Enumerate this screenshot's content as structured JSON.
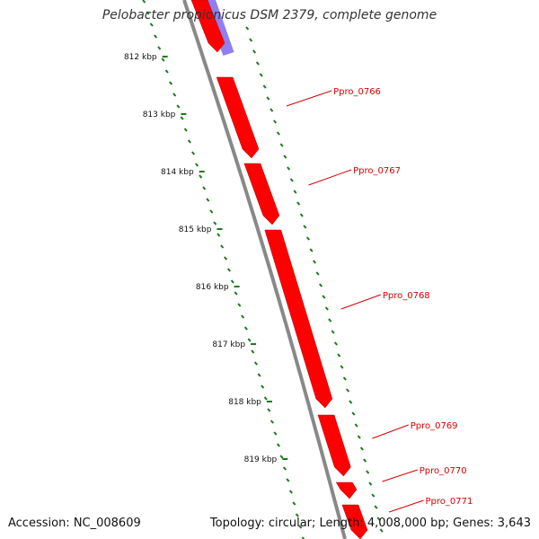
{
  "title": "Pelobacter propionicus DSM 2379, complete genome",
  "footer": {
    "accession": "Accession: NC_008609",
    "summary": "Topology: circular; Length: 4,008,000 bp; Genes: 3,643"
  },
  "colors": {
    "forward_gene": "#ff0000",
    "reverse_gene": "#7b68ee",
    "backbone": "#888888",
    "ticks": "#1a7a1a",
    "labels": "#d80000"
  },
  "scale_ticks": [
    {
      "label": "812 kbp"
    },
    {
      "label": "813 kbp"
    },
    {
      "label": "814 kbp"
    },
    {
      "label": "815 kbp"
    },
    {
      "label": "816 kbp"
    },
    {
      "label": "817 kbp"
    },
    {
      "label": "818 kbp"
    },
    {
      "label": "819 kbp"
    }
  ],
  "genes": [
    {
      "name": "Ppro_0766"
    },
    {
      "name": "Ppro_0767"
    },
    {
      "name": "Ppro_0768"
    },
    {
      "name": "Ppro_0769"
    },
    {
      "name": "Ppro_0770"
    },
    {
      "name": "Ppro_0771"
    }
  ]
}
